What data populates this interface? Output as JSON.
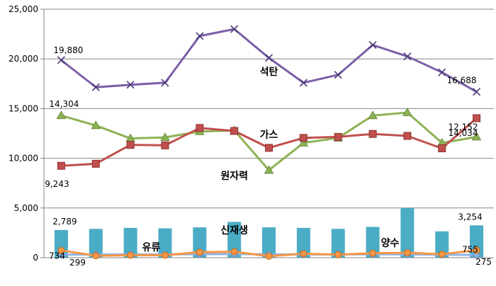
{
  "chart_data": {
    "type": "line",
    "title": "",
    "xlabel": "",
    "ylabel": "",
    "ylim": [
      0,
      25000
    ],
    "yticks": [
      0,
      5000,
      10000,
      15000,
      20000,
      25000
    ],
    "ytick_labels": [
      "0",
      "5,000",
      "10,000",
      "15,000",
      "20,000",
      "25,000"
    ],
    "grid": true,
    "legend": "none",
    "n_points": 13,
    "bar_series": {
      "name": "신재생",
      "type": "bar",
      "color": "#4bacc6",
      "values": [
        2789,
        2900,
        3000,
        2950,
        3050,
        3600,
        3050,
        3000,
        2900,
        3100,
        5000,
        2650,
        3254
      ]
    },
    "series": [
      {
        "name": "석탄",
        "marker": "x",
        "color": "#7b5ea7",
        "values": [
          19880,
          17150,
          17400,
          17600,
          22300,
          23000,
          20100,
          17600,
          18400,
          21400,
          20250,
          18650,
          16688
        ]
      },
      {
        "name": "가스",
        "marker": "triangle",
        "color": "#8db255",
        "values": [
          14304,
          13300,
          12000,
          12100,
          12700,
          12800,
          8800,
          11550,
          12050,
          14300,
          14600,
          11550,
          12152
        ]
      },
      {
        "name": "원자력",
        "marker": "square",
        "color": "#c0504d",
        "values": [
          9243,
          9450,
          11350,
          11300,
          13050,
          12750,
          11050,
          12050,
          12150,
          12450,
          12250,
          11000,
          14034
        ]
      },
      {
        "name": "유류",
        "marker": "diamond",
        "color": "#8eb4e3",
        "values": [
          299,
          320,
          330,
          330,
          350,
          360,
          340,
          330,
          320,
          350,
          330,
          300,
          275
        ]
      },
      {
        "name": "양수",
        "marker": "circle",
        "color": "#f79646",
        "values": [
          734,
          200,
          250,
          250,
          550,
          600,
          150,
          400,
          300,
          450,
          500,
          350,
          755
        ]
      }
    ],
    "data_labels": [
      {
        "text": "19,880",
        "series": "석탄",
        "index": 0
      },
      {
        "text": "16,688",
        "series": "석탄",
        "index": 12
      },
      {
        "text": "14,304",
        "series": "가스",
        "index": 0
      },
      {
        "text": "12,152",
        "series": "가스",
        "index": 12
      },
      {
        "text": "9,243",
        "series": "원자력",
        "index": 0
      },
      {
        "text": "14,034",
        "series": "원자력",
        "index": 12
      },
      {
        "text": "2,789",
        "series": "신재생",
        "index": 0
      },
      {
        "text": "3,254",
        "series": "신재생",
        "index": 12
      },
      {
        "text": "734",
        "series": "양수",
        "index": 0
      },
      {
        "text": "299",
        "series": "유류",
        "index": 0
      },
      {
        "text": "755",
        "series": "양수",
        "index": 12
      },
      {
        "text": "275",
        "series": "유류",
        "index": 12
      }
    ],
    "series_labels": [
      {
        "text": "석탄",
        "series": "석탄"
      },
      {
        "text": "가스",
        "series": "가스"
      },
      {
        "text": "원자력",
        "series": "원자력"
      },
      {
        "text": "신재생",
        "series": "신재생"
      },
      {
        "text": "유류",
        "series": "유류"
      },
      {
        "text": "양수",
        "series": "양수"
      }
    ],
    "colors": {
      "grid": "#868686",
      "axis": "#868686",
      "background": "#ffffff"
    }
  }
}
